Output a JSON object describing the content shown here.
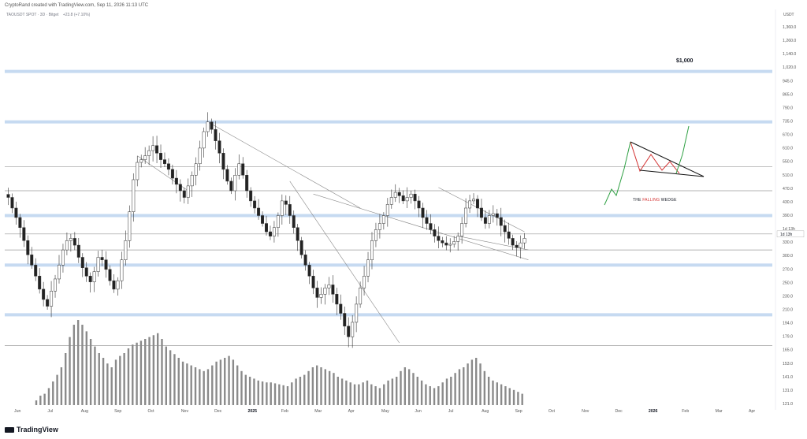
{
  "header": {
    "author_line": "CryptoRand created with TradingView.com, Sep 11, 2026 11:13 UTC",
    "symbol": "TAOUSDT SPOT · 3D · Bitget",
    "change": "+23.8 (+7.10%)"
  },
  "footer": {
    "brand": "TradingView"
  },
  "annotations": {
    "target": "$1,000",
    "pattern_prefix": "THE ",
    "pattern_highlight": "FALLING",
    "pattern_suffix": " WEDGE"
  },
  "colors": {
    "hline": "#9a9a9a",
    "zone": "#bcd3ef",
    "candle_up": "#ffffff",
    "candle_down": "#222222",
    "wedge_fill": "#d32f2f",
    "wedge_up": "#2ea043"
  },
  "chart_data": {
    "type": "candlestick",
    "unit_label": "USDT",
    "price_badge": "1d 13h",
    "y_ticks": [
      "1,360.0",
      "1,260.0",
      "1,140.0",
      "1,020.0",
      "945.0",
      "865.0",
      "790.0",
      "735.0",
      "670.0",
      "610.0",
      "550.0",
      "510.0",
      "470.0",
      "430.0",
      "390.0",
      "1d 13h",
      "330.0",
      "300.0",
      "270.0",
      "250.0",
      "230.0",
      "210.0",
      "194.0",
      "179.0",
      "165.0",
      "153.0",
      "141.0",
      "131.0",
      "121.0"
    ],
    "x_ticks": [
      {
        "label": "Jun",
        "bold": false
      },
      {
        "label": "Jul",
        "bold": false
      },
      {
        "label": "Aug",
        "bold": false
      },
      {
        "label": "Sep",
        "bold": false
      },
      {
        "label": "Oct",
        "bold": false
      },
      {
        "label": "Nov",
        "bold": false
      },
      {
        "label": "Dec",
        "bold": false
      },
      {
        "label": "2025",
        "bold": true
      },
      {
        "label": "Feb",
        "bold": false
      },
      {
        "label": "Mar",
        "bold": false
      },
      {
        "label": "Apr",
        "bold": false
      },
      {
        "label": "May",
        "bold": false
      },
      {
        "label": "Jun",
        "bold": false
      },
      {
        "label": "Jul",
        "bold": false
      },
      {
        "label": "Aug",
        "bold": false
      },
      {
        "label": "Sep",
        "bold": false
      },
      {
        "label": "Oct",
        "bold": false
      },
      {
        "label": "Nov",
        "bold": false
      },
      {
        "label": "Dec",
        "bold": false
      },
      {
        "label": "2026",
        "bold": true
      },
      {
        "label": "Feb",
        "bold": false
      },
      {
        "label": "Mar",
        "bold": false
      },
      {
        "label": "Apr",
        "bold": false
      }
    ],
    "horizontal_levels": [
      {
        "price": 1020,
        "zone": true
      },
      {
        "price": 735,
        "zone": true
      },
      {
        "price": 550,
        "zone": false
      },
      {
        "price": 470,
        "zone": false
      },
      {
        "price": 400,
        "zone": true
      },
      {
        "price": 355,
        "zone": false
      },
      {
        "price": 320,
        "zone": false
      },
      {
        "price": 290,
        "zone": true
      },
      {
        "price": 210,
        "zone": true
      },
      {
        "price": 172,
        "zone": false
      }
    ],
    "price_close_path": [
      450,
      420,
      395,
      370,
      340,
      310,
      290,
      270,
      248,
      232,
      222,
      245,
      265,
      290,
      320,
      340,
      345,
      330,
      305,
      285,
      270,
      260,
      278,
      305,
      300,
      282,
      262,
      248,
      262,
      300,
      340,
      410,
      505,
      565,
      575,
      590,
      610,
      630,
      600,
      575,
      560,
      540,
      510,
      490,
      470,
      450,
      485,
      520,
      560,
      620,
      690,
      735,
      700,
      650,
      600,
      540,
      500,
      470,
      520,
      560,
      520,
      470,
      440,
      420,
      400,
      380,
      360,
      350,
      370,
      400,
      440,
      430,
      400,
      370,
      340,
      310,
      290,
      270,
      250,
      235,
      240,
      250,
      255,
      240,
      225,
      212,
      195,
      182,
      200,
      225,
      250,
      270,
      300,
      340,
      365,
      380,
      400,
      430,
      450,
      465,
      455,
      440,
      450,
      460,
      440,
      420,
      395,
      380,
      365,
      350,
      340,
      335,
      330,
      332,
      338,
      350,
      380,
      420,
      440,
      445,
      420,
      395,
      380,
      400,
      405,
      395,
      375,
      360,
      345,
      330,
      325,
      335,
      345
    ],
    "volume_profile": [
      0.05,
      0.1,
      0.12,
      0.18,
      0.25,
      0.32,
      0.4,
      0.55,
      0.72,
      0.85,
      0.9,
      0.85,
      0.78,
      0.7,
      0.62,
      0.55,
      0.5,
      0.44,
      0.4,
      0.48,
      0.52,
      0.55,
      0.6,
      0.64,
      0.66,
      0.68,
      0.7,
      0.72,
      0.74,
      0.76,
      0.7,
      0.62,
      0.58,
      0.54,
      0.5,
      0.46,
      0.44,
      0.42,
      0.4,
      0.38,
      0.36,
      0.38,
      0.42,
      0.46,
      0.48,
      0.5,
      0.52,
      0.48,
      0.42,
      0.36,
      0.32,
      0.3,
      0.28,
      0.26,
      0.25,
      0.24,
      0.24,
      0.23,
      0.22,
      0.21,
      0.2,
      0.24,
      0.28,
      0.3,
      0.32,
      0.36,
      0.4,
      0.42,
      0.4,
      0.38,
      0.36,
      0.34,
      0.3,
      0.28,
      0.26,
      0.24,
      0.22,
      0.22,
      0.24,
      0.26,
      0.22,
      0.2,
      0.18,
      0.22,
      0.26,
      0.28,
      0.3,
      0.36,
      0.4,
      0.38,
      0.34,
      0.3,
      0.26,
      0.22,
      0.2,
      0.18,
      0.2,
      0.24,
      0.28,
      0.3,
      0.34,
      0.38,
      0.4,
      0.44,
      0.48,
      0.5,
      0.44,
      0.36,
      0.3,
      0.26,
      0.24,
      0.22,
      0.2,
      0.18,
      0.16,
      0.14,
      0.12
    ]
  }
}
